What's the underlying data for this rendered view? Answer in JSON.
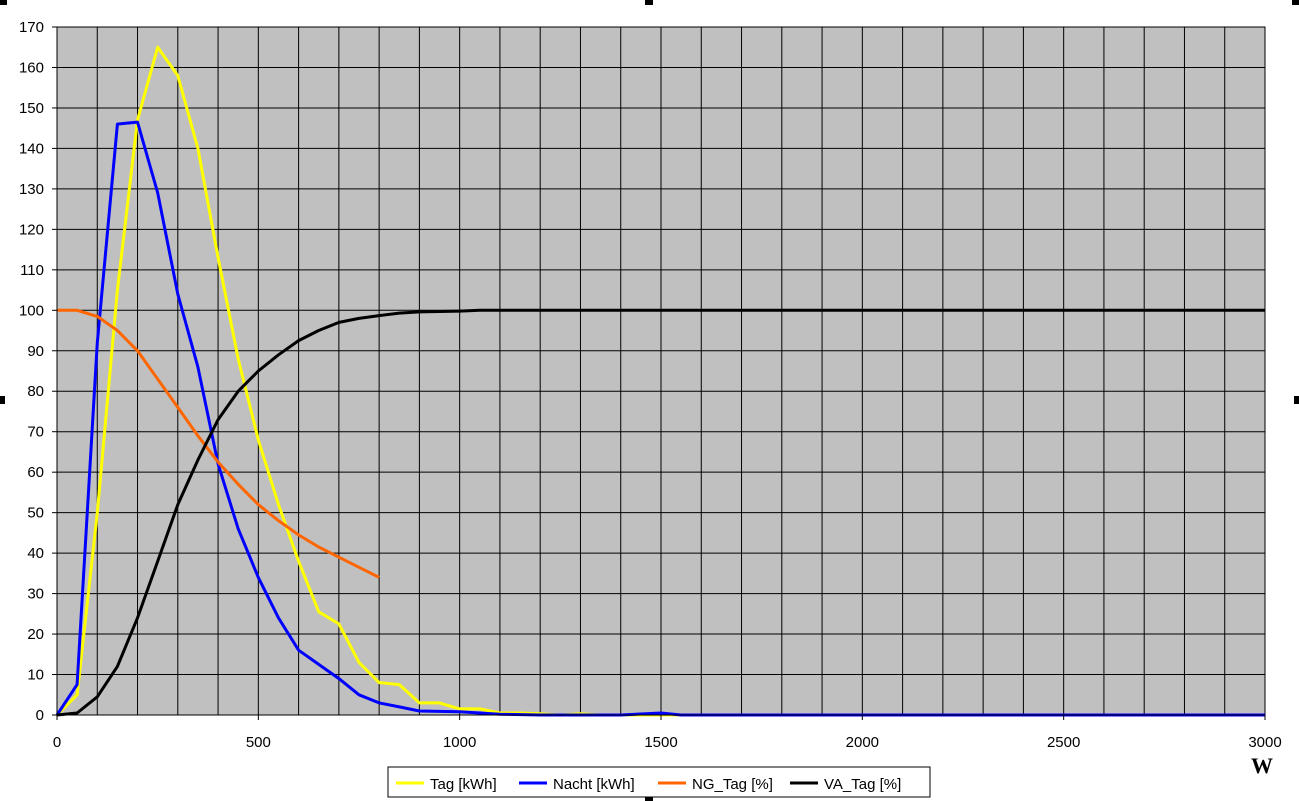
{
  "chart_data": {
    "type": "line",
    "title": "",
    "xlabel": "",
    "ylabel": "",
    "unit_label": "W",
    "xlim": [
      0,
      3000
    ],
    "ylim": [
      0,
      170
    ],
    "x_ticks": [
      0,
      500,
      1000,
      1500,
      2000,
      2500,
      3000
    ],
    "y_ticks": [
      0,
      10,
      20,
      30,
      40,
      50,
      60,
      70,
      80,
      90,
      100,
      110,
      120,
      130,
      140,
      150,
      160,
      170
    ],
    "x_grid_step": 100,
    "grid": true,
    "plot_background": "#c0c0c0",
    "grid_color": "#000000",
    "legend_position": "bottom",
    "series": [
      {
        "name": "Tag [kWh]",
        "color": "#ffff00",
        "points": [
          [
            0,
            0
          ],
          [
            50,
            5
          ],
          [
            100,
            50
          ],
          [
            150,
            105
          ],
          [
            200,
            147
          ],
          [
            250,
            165
          ],
          [
            300,
            158
          ],
          [
            350,
            140
          ],
          [
            400,
            113
          ],
          [
            450,
            88
          ],
          [
            500,
            68
          ],
          [
            550,
            52
          ],
          [
            600,
            38
          ],
          [
            650,
            25.5
          ],
          [
            700,
            22.5
          ],
          [
            750,
            13
          ],
          [
            800,
            8
          ],
          [
            850,
            7.5
          ],
          [
            900,
            3
          ],
          [
            950,
            3
          ],
          [
            1000,
            1.5
          ],
          [
            1050,
            1.5
          ],
          [
            1100,
            0.5
          ],
          [
            1150,
            0.5
          ],
          [
            1200,
            0.3
          ],
          [
            1250,
            0
          ],
          [
            1300,
            0.3
          ],
          [
            1350,
            0
          ],
          [
            1400,
            0
          ],
          [
            1500,
            0
          ],
          [
            3000,
            0
          ]
        ]
      },
      {
        "name": "Nacht [kWh]",
        "color": "#0000ff",
        "points": [
          [
            0,
            0
          ],
          [
            50,
            7.5
          ],
          [
            100,
            92
          ],
          [
            150,
            146
          ],
          [
            200,
            146.5
          ],
          [
            250,
            129
          ],
          [
            300,
            104
          ],
          [
            350,
            86
          ],
          [
            400,
            62
          ],
          [
            450,
            46
          ],
          [
            500,
            34
          ],
          [
            550,
            24
          ],
          [
            600,
            16
          ],
          [
            650,
            12.5
          ],
          [
            700,
            9
          ],
          [
            750,
            5
          ],
          [
            800,
            3
          ],
          [
            850,
            2
          ],
          [
            900,
            1
          ],
          [
            1000,
            0.8
          ],
          [
            1050,
            0.5
          ],
          [
            1100,
            0.2
          ],
          [
            1200,
            0
          ],
          [
            1400,
            0
          ],
          [
            1500,
            0.5
          ],
          [
            1550,
            0
          ],
          [
            3000,
            0
          ]
        ]
      },
      {
        "name": "NG_Tag [%]",
        "color": "#ff6600",
        "points": [
          [
            0,
            100
          ],
          [
            50,
            100
          ],
          [
            100,
            98.5
          ],
          [
            150,
            95
          ],
          [
            200,
            90
          ],
          [
            250,
            83
          ],
          [
            300,
            76
          ],
          [
            350,
            69
          ],
          [
            400,
            62.5
          ],
          [
            450,
            57
          ],
          [
            500,
            52
          ],
          [
            550,
            48
          ],
          [
            600,
            44.5
          ],
          [
            650,
            41.5
          ],
          [
            700,
            39
          ],
          [
            750,
            36.5
          ],
          [
            800,
            34
          ]
        ]
      },
      {
        "name": "VA_Tag [%]",
        "color": "#000000",
        "points": [
          [
            0,
            0
          ],
          [
            50,
            0.5
          ],
          [
            100,
            4.5
          ],
          [
            150,
            12
          ],
          [
            200,
            24
          ],
          [
            250,
            38
          ],
          [
            300,
            52
          ],
          [
            350,
            63
          ],
          [
            400,
            73
          ],
          [
            450,
            80
          ],
          [
            500,
            85
          ],
          [
            550,
            89
          ],
          [
            600,
            92.5
          ],
          [
            650,
            95
          ],
          [
            700,
            97
          ],
          [
            750,
            98
          ],
          [
            800,
            98.7
          ],
          [
            850,
            99.3
          ],
          [
            900,
            99.6
          ],
          [
            950,
            99.7
          ],
          [
            1000,
            99.8
          ],
          [
            1050,
            100
          ],
          [
            1500,
            100
          ],
          [
            2000,
            100
          ],
          [
            3000,
            100
          ]
        ]
      }
    ]
  }
}
